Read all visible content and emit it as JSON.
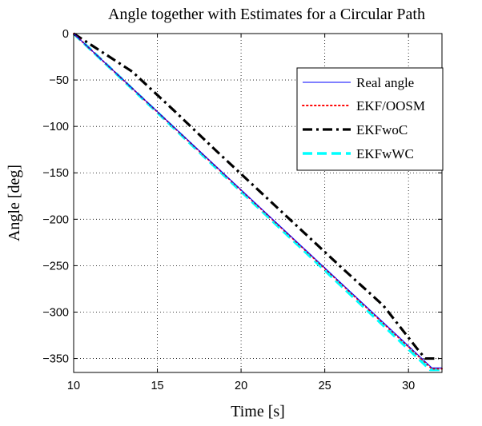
{
  "chart_data": {
    "type": "line",
    "title": "Angle together with Estimates for a Circular Path",
    "xlabel": "Time [s]",
    "ylabel": "Angle [deg]",
    "xlim": [
      10,
      32
    ],
    "ylim": [
      -365,
      0
    ],
    "xticks": [
      10,
      15,
      20,
      25,
      30
    ],
    "yticks": [
      0,
      -50,
      -100,
      -150,
      -200,
      -250,
      -300,
      -350
    ],
    "xtick_labels": [
      "10",
      "15",
      "20",
      "25",
      "30"
    ],
    "ytick_labels": [
      "0",
      "−50",
      "−100",
      "−150",
      "−200",
      "−250",
      "−300",
      "−350"
    ],
    "grid": true,
    "legend_position": "upper-right",
    "series": [
      {
        "name": "Real angle",
        "color": "#0000ff",
        "style": "solid",
        "points": [
          [
            10,
            0
          ],
          [
            31.4,
            -360
          ],
          [
            32,
            -360
          ]
        ]
      },
      {
        "name": "EKF/OOSM",
        "color": "#ff0000",
        "style": "dotted",
        "points": [
          [
            10,
            0
          ],
          [
            31.4,
            -361
          ],
          [
            32,
            -361
          ]
        ]
      },
      {
        "name": "EKFwoC",
        "color": "#000000",
        "style": "dashdot",
        "points": [
          [
            10,
            0
          ],
          [
            13.5,
            -41
          ],
          [
            16,
            -83
          ],
          [
            18.5,
            -126
          ],
          [
            21,
            -168
          ],
          [
            23.5,
            -210
          ],
          [
            26,
            -252
          ],
          [
            28.5,
            -293
          ],
          [
            30.5,
            -339
          ],
          [
            31,
            -350
          ],
          [
            31.8,
            -350
          ]
        ]
      },
      {
        "name": "EKFwWC",
        "color": "#00ffff",
        "style": "dashed",
        "points": [
          [
            10,
            0
          ],
          [
            31.3,
            -362
          ],
          [
            32,
            -362
          ]
        ]
      }
    ]
  }
}
